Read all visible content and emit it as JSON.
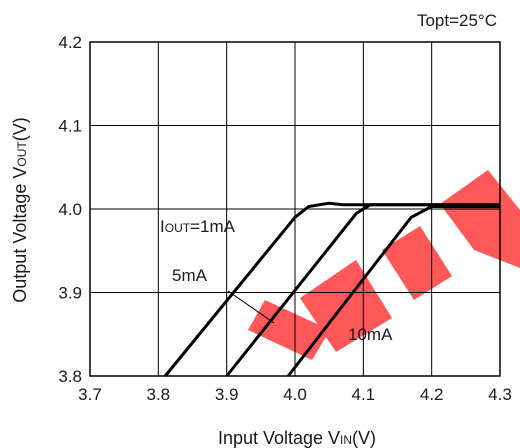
{
  "chart_data": {
    "type": "line",
    "condition": "Topt=25°C",
    "xlabel": {
      "main": "Input Voltage V",
      "sub": "IN",
      "unit": "(V)"
    },
    "ylabel": {
      "main": "Output Voltage V",
      "sub": "OUT",
      "unit": "(V)"
    },
    "xlim": [
      3.7,
      4.3
    ],
    "ylim": [
      3.8,
      4.2
    ],
    "xticks": [
      "3.7",
      "3.8",
      "3.9",
      "4.0",
      "4.1",
      "4.2",
      "4.3"
    ],
    "yticks": [
      "3.8",
      "3.9",
      "4.0",
      "4.1",
      "4.2"
    ],
    "grid": true,
    "series": [
      {
        "name": "IOUT=1mA",
        "label_main": "I",
        "label_sub": "OUT",
        "label_rest": "=1mA",
        "color": "#000000",
        "x": [
          3.81,
          4.0,
          4.02,
          4.05,
          4.07,
          4.3
        ],
        "y": [
          3.8,
          3.99,
          4.003,
          4.007,
          4.005,
          4.005
        ]
      },
      {
        "name": "5mA",
        "label_main": "5mA",
        "color": "#000000",
        "x": [
          3.9,
          4.09,
          4.11,
          4.3
        ],
        "y": [
          3.8,
          3.995,
          4.005,
          4.005
        ]
      },
      {
        "name": "10mA",
        "label_main": "10mA",
        "color": "#000000",
        "x": [
          3.99,
          4.17,
          4.2,
          4.3
        ],
        "y": [
          3.8,
          3.99,
          4.003,
          4.003
        ]
      }
    ]
  }
}
